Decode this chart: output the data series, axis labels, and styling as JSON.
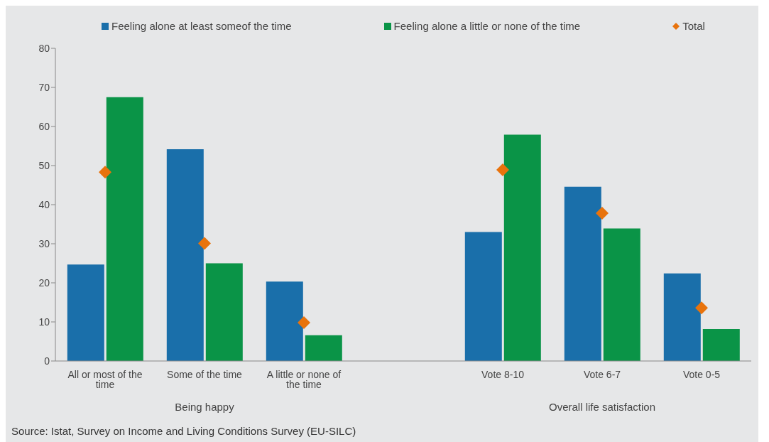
{
  "chart_data": {
    "type": "bar",
    "categories": [
      "All or most of the time",
      "Some of the time",
      "A little or none of the time",
      null,
      "Vote 8-10",
      "Vote 6-7",
      "Vote 0-5"
    ],
    "series": [
      {
        "name": "Feeling alone at least someof the time",
        "color": "#1a6faa",
        "values": [
          24.7,
          54.2,
          20.3,
          null,
          33,
          44.6,
          22.4
        ]
      },
      {
        "name": "Feeling alone a little or none of the time",
        "color": "#0a9447",
        "values": [
          67.5,
          25,
          6.6,
          null,
          57.9,
          33.9,
          8.2
        ]
      },
      {
        "name": "Total",
        "type": "scatter",
        "color": "#e8730c",
        "marker": "diamond",
        "values": [
          48.3,
          30.1,
          9.8,
          null,
          48.9,
          37.8,
          13.6
        ]
      }
    ],
    "ylim": [
      0,
      80
    ],
    "yticks": [
      0,
      10,
      20,
      30,
      40,
      50,
      60,
      70,
      80
    ],
    "grid": false,
    "legend": "top",
    "annotations": [
      "Being happy",
      "Overall life satisfaction",
      "Source: Istat, Survey on Income and Living Conditions Survey (EU-SILC)"
    ]
  }
}
